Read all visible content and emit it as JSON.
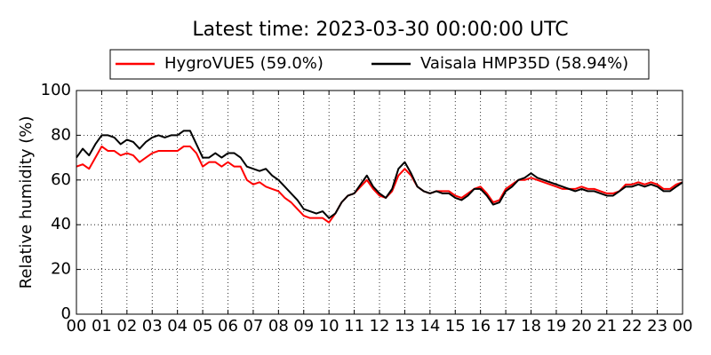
{
  "chart_data": {
    "type": "line",
    "title": "Latest time: 2023-03-30 00:00:00 UTC",
    "y_label": "Relative humidity (%)",
    "x": [
      0,
      0.25,
      0.5,
      0.75,
      1,
      1.25,
      1.5,
      1.75,
      2,
      2.25,
      2.5,
      2.75,
      3,
      3.25,
      3.5,
      3.75,
      4,
      4.25,
      4.5,
      4.75,
      5,
      5.25,
      5.5,
      5.75,
      6,
      6.25,
      6.5,
      6.75,
      7,
      7.25,
      7.5,
      7.75,
      8,
      8.25,
      8.5,
      8.75,
      9,
      9.25,
      9.5,
      9.75,
      10,
      10.25,
      10.5,
      10.75,
      11,
      11.25,
      11.5,
      11.75,
      12,
      12.25,
      12.5,
      12.75,
      13,
      13.25,
      13.5,
      13.75,
      14,
      14.25,
      14.5,
      14.75,
      15,
      15.25,
      15.5,
      15.75,
      16,
      16.25,
      16.5,
      16.75,
      17,
      17.25,
      17.5,
      17.75,
      18,
      18.25,
      18.5,
      18.75,
      19,
      19.25,
      19.5,
      19.75,
      20,
      20.25,
      20.5,
      20.75,
      21,
      21.25,
      21.5,
      21.75,
      22,
      22.25,
      22.5,
      22.75,
      23,
      23.25,
      23.5,
      23.75,
      24
    ],
    "series": [
      {
        "name": "HygroVUE5 (59.0%)",
        "color": "#ff0000",
        "values": [
          66,
          67,
          65,
          70,
          75,
          73,
          73,
          71,
          72,
          71,
          68,
          70,
          72,
          73,
          73,
          73,
          73,
          75,
          75,
          72,
          66,
          68,
          68,
          66,
          68,
          66,
          66,
          60,
          58,
          59,
          57,
          56,
          55,
          52,
          50,
          47,
          44,
          43,
          43,
          43,
          41,
          45,
          50,
          53,
          54,
          57,
          60,
          56,
          53,
          52,
          55,
          62,
          65,
          62,
          57,
          55,
          54,
          55,
          55,
          55,
          53,
          52,
          54,
          56,
          57,
          54,
          50,
          51,
          56,
          58,
          60,
          60,
          61,
          60,
          59,
          58,
          57,
          56,
          56,
          56,
          57,
          56,
          56,
          55,
          54,
          54,
          55,
          58,
          58,
          59,
          58,
          59,
          58,
          56,
          56,
          58,
          59.0
        ]
      },
      {
        "name": "Vaisala HMP35D (58.94%)",
        "color": "#000000",
        "values": [
          70,
          74,
          71,
          76,
          80,
          80,
          79,
          76,
          78,
          77,
          74,
          77,
          79,
          80,
          79,
          80,
          80,
          82,
          82,
          76,
          70,
          70,
          72,
          70,
          72,
          72,
          70,
          66,
          65,
          64,
          65,
          62,
          60,
          57,
          54,
          51,
          47,
          46,
          45,
          46,
          43,
          45,
          50,
          53,
          54,
          58,
          62,
          57,
          54,
          52,
          56,
          65,
          68,
          63,
          57,
          55,
          54,
          55,
          54,
          54,
          52,
          51,
          53,
          56,
          56,
          53,
          49,
          50,
          55,
          57,
          60,
          61,
          63,
          61,
          60,
          59,
          58,
          57,
          56,
          55,
          56,
          55,
          55,
          54,
          53,
          53,
          55,
          57,
          57,
          58,
          57,
          58,
          57,
          55,
          55,
          57,
          58.94
        ]
      }
    ],
    "xlim": [
      0,
      24
    ],
    "xticks": [
      {
        "value": 0,
        "label": "00"
      },
      {
        "value": 1,
        "label": "01"
      },
      {
        "value": 2,
        "label": "02"
      },
      {
        "value": 3,
        "label": "03"
      },
      {
        "value": 4,
        "label": "04"
      },
      {
        "value": 5,
        "label": "05"
      },
      {
        "value": 6,
        "label": "06"
      },
      {
        "value": 7,
        "label": "07"
      },
      {
        "value": 8,
        "label": "08"
      },
      {
        "value": 9,
        "label": "09"
      },
      {
        "value": 10,
        "label": "10"
      },
      {
        "value": 11,
        "label": "11"
      },
      {
        "value": 12,
        "label": "12"
      },
      {
        "value": 13,
        "label": "13"
      },
      {
        "value": 14,
        "label": "14"
      },
      {
        "value": 15,
        "label": "15"
      },
      {
        "value": 16,
        "label": "16"
      },
      {
        "value": 17,
        "label": "17"
      },
      {
        "value": 18,
        "label": "18"
      },
      {
        "value": 19,
        "label": "19"
      },
      {
        "value": 20,
        "label": "20"
      },
      {
        "value": 21,
        "label": "21"
      },
      {
        "value": 22,
        "label": "22"
      },
      {
        "value": 23,
        "label": "23"
      },
      {
        "value": 24,
        "label": "00"
      }
    ],
    "ylim": [
      0,
      100
    ],
    "yticks": [
      0,
      20,
      40,
      60,
      80,
      100
    ],
    "grid": true,
    "legend": "upper center"
  }
}
